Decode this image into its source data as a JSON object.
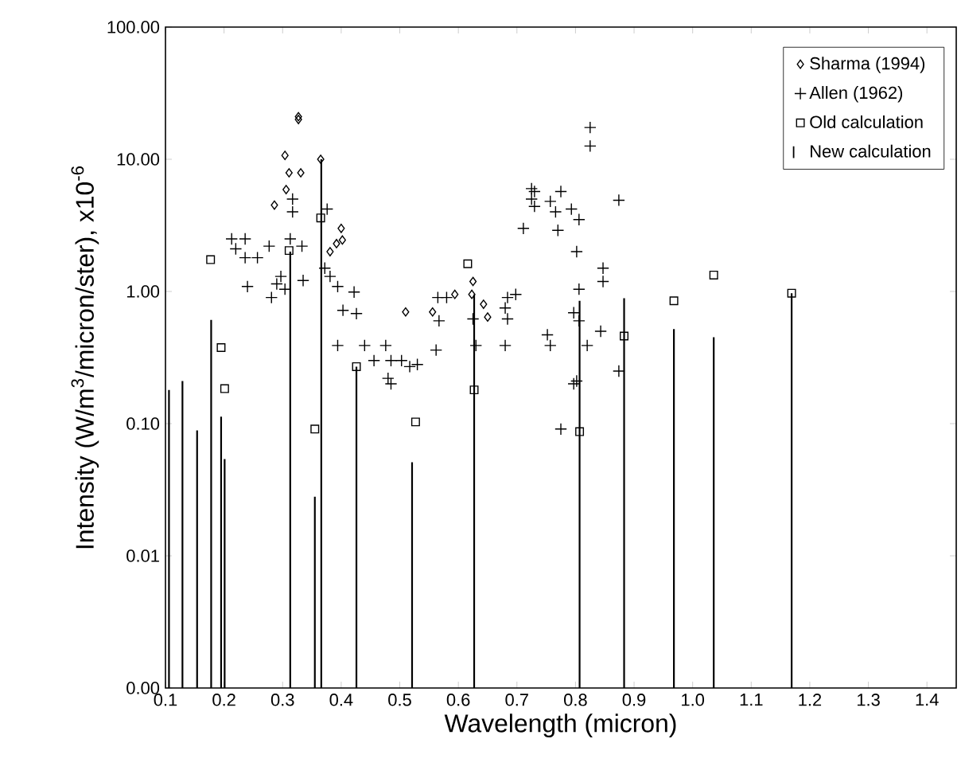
{
  "chart_data": {
    "type": "scatter",
    "xlabel": "Wavelength (micron)",
    "ylabel": "Intensity (W/m$^{3}$/micron/ster), x10$^{-6}$",
    "log": "y",
    "legend": "top right",
    "xlim": [
      0.1,
      1.45
    ],
    "ylim": [
      0.001,
      100
    ],
    "xticks": [
      {
        "value": 0.1,
        "label": "0.1"
      },
      {
        "value": 0.2,
        "label": "0.2"
      },
      {
        "value": 0.3,
        "label": "0.3"
      },
      {
        "value": 0.4,
        "label": "0.4"
      },
      {
        "value": 0.5,
        "label": "0.5"
      },
      {
        "value": 0.6,
        "label": "0.6"
      },
      {
        "value": 0.7,
        "label": "0.7"
      },
      {
        "value": 0.8,
        "label": "0.8"
      },
      {
        "value": 0.9,
        "label": "0.9"
      },
      {
        "value": 1.0,
        "label": "1.0"
      },
      {
        "value": 1.1,
        "label": "1.1"
      },
      {
        "value": 1.2,
        "label": "1.2"
      },
      {
        "value": 1.3,
        "label": "1.3"
      },
      {
        "value": 1.4,
        "label": "1.4"
      }
    ],
    "yticks": [
      {
        "value": 0.001,
        "label": "0.00"
      },
      {
        "value": 0.01,
        "label": "0.01"
      },
      {
        "value": 0.1,
        "label": "0.10"
      },
      {
        "value": 1,
        "label": "1.00"
      },
      {
        "value": 10,
        "label": "10.00"
      },
      {
        "value": 100,
        "label": "100.00"
      }
    ],
    "series": [
      {
        "name": "Sharma (1994)",
        "marker": "diamond",
        "color": "#000000",
        "x": [
          0.327,
          0.327,
          0.304,
          0.311,
          0.331,
          0.306,
          0.286,
          0.365,
          0.4,
          0.402,
          0.392,
          0.381,
          0.51,
          0.556,
          0.594,
          0.625,
          0.623,
          0.643,
          0.65
        ],
        "values": [
          21,
          20,
          10.7,
          7.9,
          7.9,
          5.9,
          4.5,
          10,
          3,
          2.45,
          2.3,
          2,
          0.7,
          0.7,
          0.95,
          1.19,
          0.95,
          0.8,
          0.64
        ]
      },
      {
        "name": "Allen (1962)",
        "marker": "cross",
        "color": "#000000",
        "x": [
          0.213,
          0.236,
          0.22,
          0.236,
          0.257,
          0.277,
          0.317,
          0.317,
          0.313,
          0.333,
          0.297,
          0.29,
          0.304,
          0.281,
          0.24,
          0.335,
          0.376,
          0.372,
          0.381,
          0.394,
          0.422,
          0.403,
          0.426,
          0.394,
          0.44,
          0.456,
          0.476,
          0.485,
          0.503,
          0.517,
          0.48,
          0.485,
          0.53,
          0.565,
          0.567,
          0.562,
          0.58,
          0.625,
          0.63,
          0.684,
          0.68,
          0.684,
          0.68,
          0.698,
          0.73,
          0.73,
          0.711,
          0.757,
          0.757,
          0.825,
          0.825,
          0.725,
          0.725,
          0.775,
          0.766,
          0.793,
          0.806,
          0.77,
          0.874,
          0.802,
          0.847,
          0.847,
          0.806,
          0.797,
          0.752,
          0.806,
          0.843,
          0.82,
          0.874,
          0.802,
          0.797,
          0.775
        ],
        "values": [
          2.5,
          2.5,
          2.1,
          1.8,
          1.8,
          2.2,
          5,
          4,
          2.5,
          2.2,
          1.3,
          1.14,
          1.04,
          0.9,
          1.09,
          1.21,
          4.2,
          1.5,
          1.3,
          1.09,
          0.99,
          0.72,
          0.68,
          0.39,
          0.39,
          0.3,
          0.39,
          0.3,
          0.3,
          0.27,
          0.22,
          0.2,
          0.28,
          0.9,
          0.6,
          0.36,
          0.9,
          0.62,
          0.39,
          0.9,
          0.75,
          0.62,
          0.39,
          0.95,
          5.7,
          4.4,
          3,
          4.8,
          0.39,
          17.4,
          12.6,
          6,
          5,
          5.7,
          4,
          4.2,
          3.5,
          2.9,
          4.9,
          2,
          1.5,
          1.19,
          1.04,
          0.69,
          0.47,
          0.6,
          0.5,
          0.39,
          0.25,
          0.21,
          0.2,
          0.091
        ]
      },
      {
        "name": "Old calculation",
        "marker": "square",
        "color": "#000000",
        "x": [
          0.177,
          0.311,
          0.365,
          0.616,
          0.195,
          0.201,
          0.426,
          0.627,
          0.355,
          0.527,
          0.883,
          0.968,
          1.036,
          1.169,
          0.807
        ],
        "values": [
          1.74,
          2.04,
          3.6,
          1.62,
          0.376,
          0.184,
          0.27,
          0.18,
          0.091,
          0.103,
          0.46,
          0.85,
          1.33,
          0.97,
          0.087
        ]
      },
      {
        "name": "New calculation",
        "type": "bar",
        "color": "#000000",
        "x": [
          0.106,
          0.129,
          0.154,
          0.178,
          0.195,
          0.201,
          0.313,
          0.355,
          0.366,
          0.426,
          0.521,
          0.627,
          0.807,
          0.883,
          0.968,
          1.036,
          1.169
        ],
        "values": [
          0.18,
          0.21,
          0.089,
          0.61,
          0.113,
          0.054,
          2.0,
          0.028,
          10,
          0.27,
          0.051,
          0.95,
          0.85,
          0.89,
          0.52,
          0.45,
          0.97
        ]
      }
    ]
  }
}
